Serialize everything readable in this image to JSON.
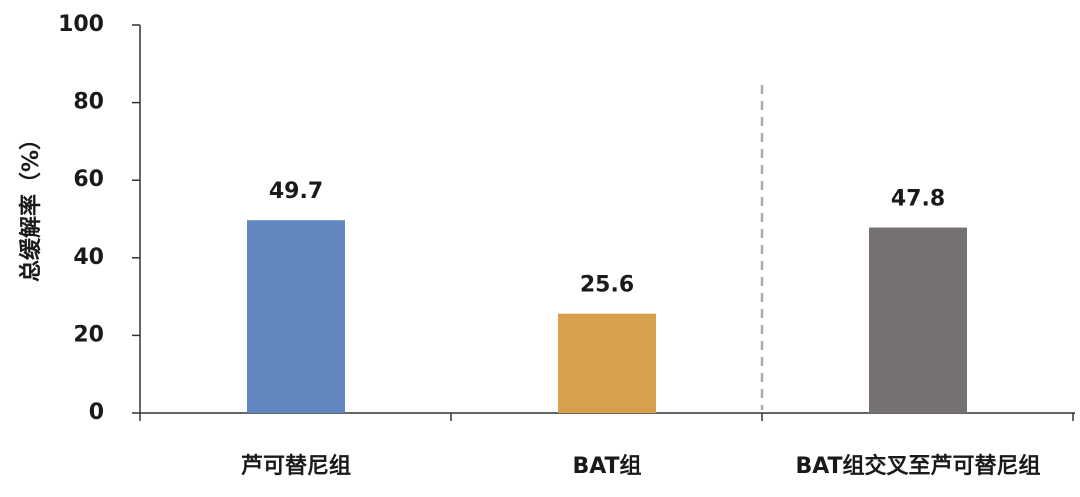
{
  "chart_data": {
    "type": "bar",
    "y_label": "总缓解率（%）",
    "categories": [
      "芦可替尼组",
      "BAT组",
      "BAT组交叉至芦可替尼组"
    ],
    "values": [
      49.7,
      25.6,
      47.8
    ],
    "colors": [
      "#6287c0",
      "#d89f4c",
      "#767271"
    ],
    "ylim": [
      0,
      100
    ],
    "yticks": [
      0,
      20,
      40,
      60,
      80,
      100
    ],
    "grid": false
  }
}
